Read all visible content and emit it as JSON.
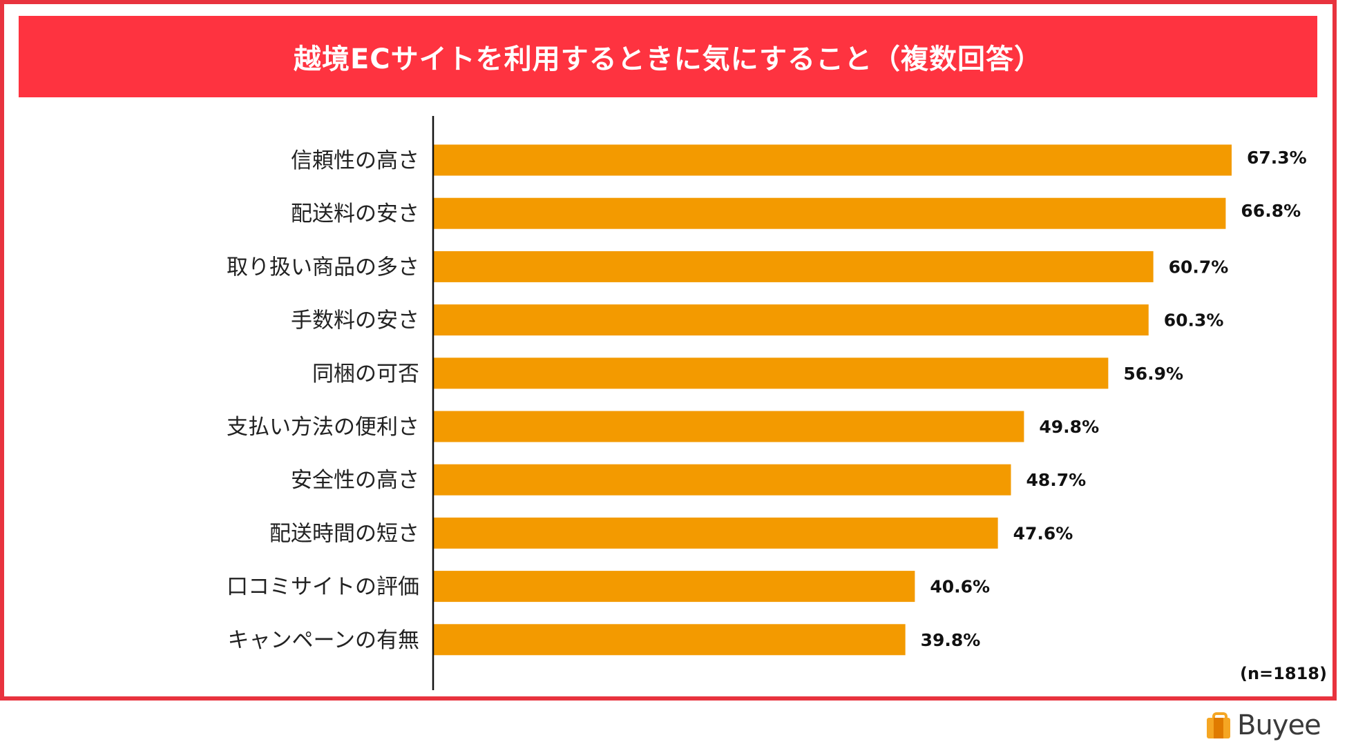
{
  "colors": {
    "frame": "#e8333e",
    "banner": "#fe3340",
    "bar": "#f39a00",
    "axis": "#111111"
  },
  "chart_data": {
    "type": "bar",
    "orientation": "horizontal",
    "title": "越境ECサイトを利用するときに気にすること（複数回答）",
    "categories": [
      "信頼性の高さ",
      "配送料の安さ",
      "取り扱い商品の多さ",
      "手数料の安さ",
      "同梱の可否",
      "支払い方法の便利さ",
      "安全性の高さ",
      "配送時間の短さ",
      "口コミサイトの評価",
      "キャンペーンの有無"
    ],
    "values": [
      67.3,
      66.8,
      60.7,
      60.3,
      56.9,
      49.8,
      48.7,
      47.6,
      40.6,
      39.8
    ],
    "value_labels": [
      "67.3%",
      "66.8%",
      "60.7%",
      "60.3%",
      "56.9%",
      "49.8%",
      "48.7%",
      "47.6%",
      "40.6%",
      "39.8%"
    ],
    "xlim": [
      0,
      73.5
    ],
    "xlabel": "",
    "ylabel": "",
    "grid": false,
    "note": "(n=1818)"
  },
  "logo": {
    "icon": "shopping-bag-icon",
    "text": "Buyee"
  }
}
